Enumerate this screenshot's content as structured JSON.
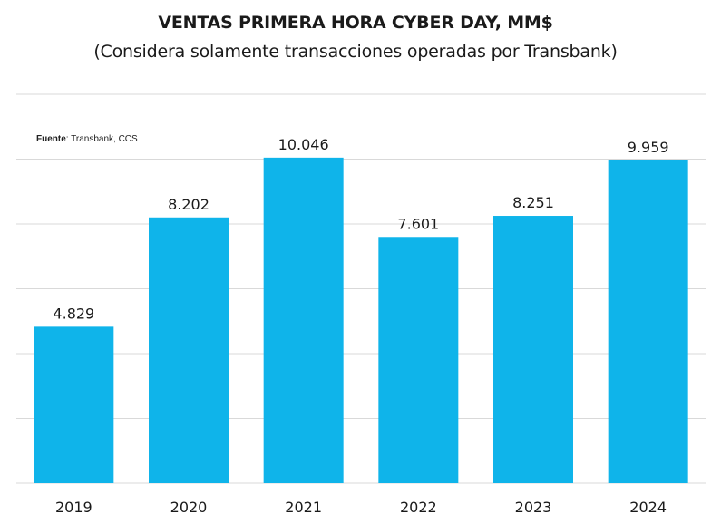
{
  "chart_data": {
    "type": "bar",
    "title": "VENTAS PRIMERA HORA CYBER DAY, MM$",
    "subtitle": "(Considera solamente transacciones operadas por Transbank)",
    "source_label": "Fuente",
    "source_text": ": Transbank, CCS",
    "categories": [
      "2019",
      "2020",
      "2021",
      "2022",
      "2023",
      "2024"
    ],
    "values": [
      4829,
      8202,
      10046,
      7601,
      8251,
      9959
    ],
    "value_labels": [
      "4.829",
      "8.202",
      "10.046",
      "7.601",
      "8.251",
      "9.959"
    ],
    "xlabel": "",
    "ylabel": "",
    "ylim": [
      0,
      12000
    ],
    "grid": true,
    "bar_color": "#0fb4ea",
    "grid_color": "#d9d9d9"
  }
}
